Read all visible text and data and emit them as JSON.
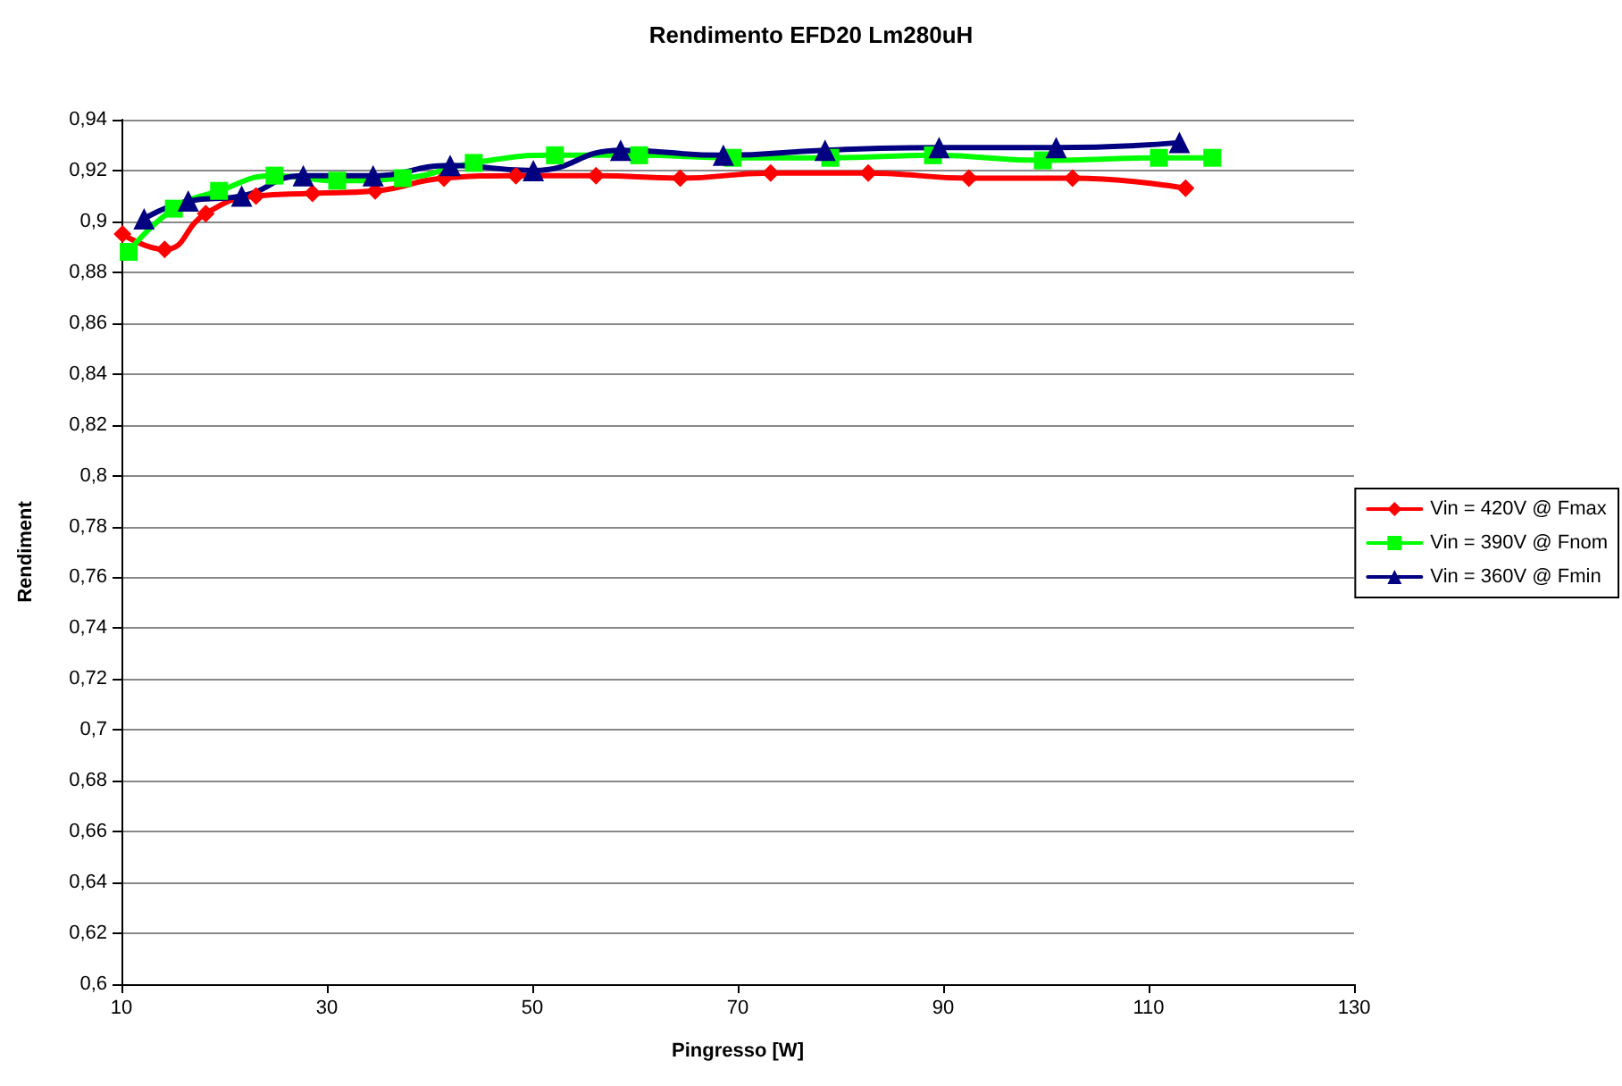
{
  "chart_data": {
    "type": "line",
    "title": "Rendimento EFD20 Lm280uH",
    "xlabel": "Pingresso [W]",
    "ylabel": "Rendiment",
    "xlim": [
      10,
      130
    ],
    "xticks": [
      10,
      30,
      50,
      70,
      90,
      110,
      130
    ],
    "ylim": [
      0.6,
      0.94
    ],
    "yticks": [
      {
        "value": 0.6,
        "label": "0,6"
      },
      {
        "value": 0.62,
        "label": "0,62"
      },
      {
        "value": 0.64,
        "label": "0,64"
      },
      {
        "value": 0.66,
        "label": "0,66"
      },
      {
        "value": 0.68,
        "label": "0,68"
      },
      {
        "value": 0.7,
        "label": "0,7"
      },
      {
        "value": 0.72,
        "label": "0,72"
      },
      {
        "value": 0.74,
        "label": "0,74"
      },
      {
        "value": 0.76,
        "label": "0,76"
      },
      {
        "value": 0.78,
        "label": "0,78"
      },
      {
        "value": 0.8,
        "label": "0,8"
      },
      {
        "value": 0.82,
        "label": "0,82"
      },
      {
        "value": 0.84,
        "label": "0,84"
      },
      {
        "value": 0.86,
        "label": "0,86"
      },
      {
        "value": 0.88,
        "label": "0,88"
      },
      {
        "value": 0.9,
        "label": "0,9"
      },
      {
        "value": 0.92,
        "label": "0,92"
      },
      {
        "value": 0.94,
        "label": "0,94"
      }
    ],
    "grid": "y",
    "legend": "right",
    "series": [
      {
        "name": "Vin = 420V @ Fmax",
        "color": "#ff0000",
        "marker": "diamond",
        "x": [
          10.1,
          14.2,
          18.2,
          23.1,
          28.6,
          34.7,
          41.4,
          48.4,
          56.2,
          64.4,
          73.2,
          82.7,
          92.5,
          102.6,
          113.6
        ],
        "values": [
          0.895,
          0.889,
          0.903,
          0.91,
          0.911,
          0.912,
          0.917,
          0.918,
          0.918,
          0.917,
          0.919,
          0.919,
          0.917,
          0.917,
          0.913
        ]
      },
      {
        "name": "Vin = 390V @ Fnom",
        "color": "#00ff00",
        "marker": "square",
        "x": [
          10.7,
          15.1,
          19.5,
          24.9,
          31.0,
          37.4,
          44.3,
          52.2,
          60.4,
          69.5,
          79.0,
          89.0,
          99.7,
          111.0,
          116.2
        ],
        "values": [
          0.888,
          0.905,
          0.912,
          0.918,
          0.916,
          0.917,
          0.923,
          0.926,
          0.926,
          0.925,
          0.925,
          0.926,
          0.924,
          0.925,
          0.925
        ]
      },
      {
        "name": "Vin = 360V @ Fmin",
        "color": "#000080",
        "marker": "triangle",
        "x": [
          12.2,
          16.5,
          21.7,
          27.7,
          34.5,
          42.0,
          50.1,
          58.6,
          68.6,
          78.5,
          89.6,
          101.0,
          113.0
        ],
        "values": [
          0.901,
          0.908,
          0.91,
          0.918,
          0.918,
          0.922,
          0.92,
          0.928,
          0.926,
          0.928,
          0.929,
          0.929,
          0.931
        ]
      }
    ]
  }
}
